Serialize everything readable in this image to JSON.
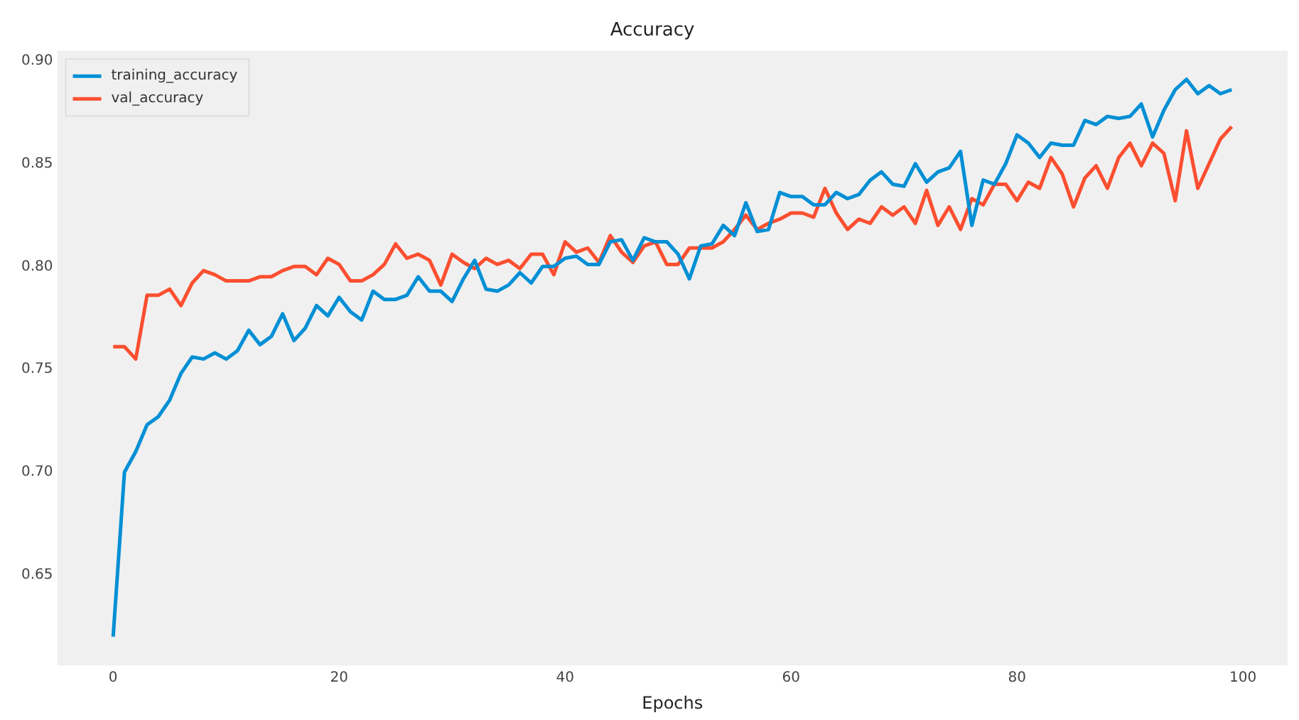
{
  "chart_data": {
    "type": "line",
    "title": "Accuracy",
    "xlabel": "Epochs",
    "x": [
      0,
      1,
      2,
      3,
      4,
      5,
      6,
      7,
      8,
      9,
      10,
      11,
      12,
      13,
      14,
      15,
      16,
      17,
      18,
      19,
      20,
      21,
      22,
      23,
      24,
      25,
      26,
      27,
      28,
      29,
      30,
      31,
      32,
      33,
      34,
      35,
      36,
      37,
      38,
      39,
      40,
      41,
      42,
      43,
      44,
      45,
      46,
      47,
      48,
      49,
      50,
      51,
      52,
      53,
      54,
      55,
      56,
      57,
      58,
      59,
      60,
      61,
      62,
      63,
      64,
      65,
      66,
      67,
      68,
      69,
      70,
      71,
      72,
      73,
      74,
      75,
      76,
      77,
      78,
      79,
      80,
      81,
      82,
      83,
      84,
      85,
      86,
      87,
      88,
      89,
      90,
      91,
      92,
      93,
      94,
      95,
      96,
      97,
      98,
      99
    ],
    "series": [
      {
        "name": "training_accuracy",
        "color": "#008fd5",
        "values": [
          0.62,
          0.7,
          0.71,
          0.723,
          0.727,
          0.735,
          0.748,
          0.756,
          0.755,
          0.758,
          0.755,
          0.759,
          0.769,
          0.762,
          0.766,
          0.777,
          0.764,
          0.77,
          0.781,
          0.776,
          0.785,
          0.778,
          0.774,
          0.788,
          0.784,
          0.784,
          0.786,
          0.795,
          0.788,
          0.788,
          0.783,
          0.794,
          0.803,
          0.789,
          0.788,
          0.791,
          0.797,
          0.792,
          0.8,
          0.8,
          0.804,
          0.805,
          0.801,
          0.801,
          0.812,
          0.813,
          0.803,
          0.814,
          0.812,
          0.812,
          0.806,
          0.794,
          0.81,
          0.811,
          0.82,
          0.815,
          0.831,
          0.817,
          0.818,
          0.836,
          0.834,
          0.834,
          0.83,
          0.83,
          0.836,
          0.833,
          0.835,
          0.842,
          0.846,
          0.84,
          0.839,
          0.85,
          0.841,
          0.846,
          0.848,
          0.856,
          0.82,
          0.842,
          0.84,
          0.85,
          0.864,
          0.86,
          0.853,
          0.86,
          0.859,
          0.859,
          0.871,
          0.869,
          0.873,
          0.872,
          0.873,
          0.879,
          0.863,
          0.876,
          0.886,
          0.891,
          0.884,
          0.888,
          0.884,
          0.886
        ]
      },
      {
        "name": "val_accuracy",
        "color": "#fc4f30",
        "values": [
          0.761,
          0.761,
          0.755,
          0.786,
          0.786,
          0.789,
          0.781,
          0.792,
          0.798,
          0.796,
          0.793,
          0.793,
          0.793,
          0.795,
          0.795,
          0.798,
          0.8,
          0.8,
          0.796,
          0.804,
          0.801,
          0.793,
          0.793,
          0.796,
          0.801,
          0.811,
          0.804,
          0.806,
          0.803,
          0.791,
          0.806,
          0.802,
          0.799,
          0.804,
          0.801,
          0.803,
          0.799,
          0.806,
          0.806,
          0.796,
          0.812,
          0.807,
          0.809,
          0.802,
          0.815,
          0.807,
          0.802,
          0.81,
          0.812,
          0.801,
          0.801,
          0.809,
          0.809,
          0.809,
          0.812,
          0.818,
          0.825,
          0.818,
          0.821,
          0.823,
          0.826,
          0.826,
          0.824,
          0.838,
          0.826,
          0.818,
          0.823,
          0.821,
          0.829,
          0.825,
          0.829,
          0.821,
          0.837,
          0.82,
          0.829,
          0.818,
          0.833,
          0.83,
          0.84,
          0.84,
          0.832,
          0.841,
          0.838,
          0.853,
          0.845,
          0.829,
          0.843,
          0.849,
          0.838,
          0.853,
          0.86,
          0.849,
          0.86,
          0.855,
          0.832,
          0.866,
          0.838,
          0.85,
          0.862,
          0.868
        ]
      }
    ],
    "xlim": [
      -4.95,
      103.95
    ],
    "xticks": [
      0,
      20,
      40,
      60,
      80,
      100
    ],
    "ylim": [
      0.606,
      0.905
    ],
    "yticks": [
      {
        "value": 0.65,
        "label": "0.65"
      },
      {
        "value": 0.7,
        "label": "0.70"
      },
      {
        "value": 0.75,
        "label": "0.75"
      },
      {
        "value": 0.8,
        "label": "0.80"
      },
      {
        "value": 0.85,
        "label": "0.85"
      },
      {
        "value": 0.9,
        "label": "0.90"
      }
    ],
    "grid": false,
    "legend": "top left",
    "marker": "none",
    "line_style": "solid"
  }
}
